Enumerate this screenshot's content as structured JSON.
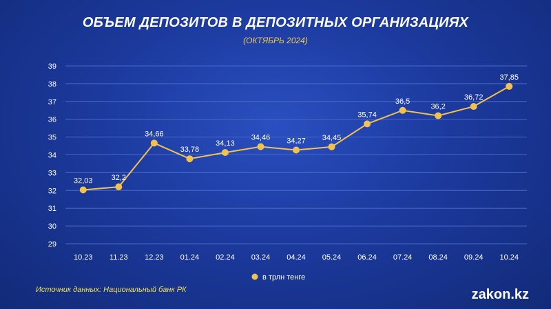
{
  "header": {
    "title": "ОБЪЕМ ДЕПОЗИТОВ В ДЕПОЗИТНЫХ ОРГАНИЗАЦИЯХ",
    "subtitle": "(ОКТЯБРЬ 2024)"
  },
  "footer": {
    "source": "Источник данных: Национальный банк РК",
    "brand": "zakon.kz"
  },
  "colors": {
    "line": "#f2c14e",
    "marker": "#f2c14e",
    "grid": "#4a68c8",
    "text": "#ffffff"
  },
  "chart_data": {
    "type": "line",
    "title": "ОБЪЕМ ДЕПОЗИТОВ В ДЕПОЗИТНЫХ ОРГАНИЗАЦИЯХ",
    "subtitle": "(ОКТЯБРЬ 2024)",
    "xlabel": "",
    "ylabel": "",
    "categories": [
      "10.23",
      "11.23",
      "12.23",
      "01.24",
      "02.24",
      "03.24",
      "04.24",
      "05.24",
      "06.24",
      "07.24",
      "08.24",
      "09.24",
      "10.24"
    ],
    "series": [
      {
        "name": "в трлн тенге",
        "values": [
          32.03,
          32.2,
          34.66,
          33.78,
          34.13,
          34.46,
          34.27,
          34.45,
          35.74,
          36.5,
          36.2,
          36.72,
          37.85
        ],
        "labels": [
          "32,03",
          "32,2",
          "34,66",
          "33,78",
          "34,13",
          "34,46",
          "34,27",
          "34,45",
          "35,74",
          "36,5",
          "36,2",
          "36,72",
          "37,85"
        ]
      }
    ],
    "ylim": [
      29,
      39
    ],
    "yticks": [
      29,
      30,
      31,
      32,
      33,
      34,
      35,
      36,
      37,
      38,
      39
    ],
    "grid": true,
    "legend_position": "bottom-center"
  }
}
